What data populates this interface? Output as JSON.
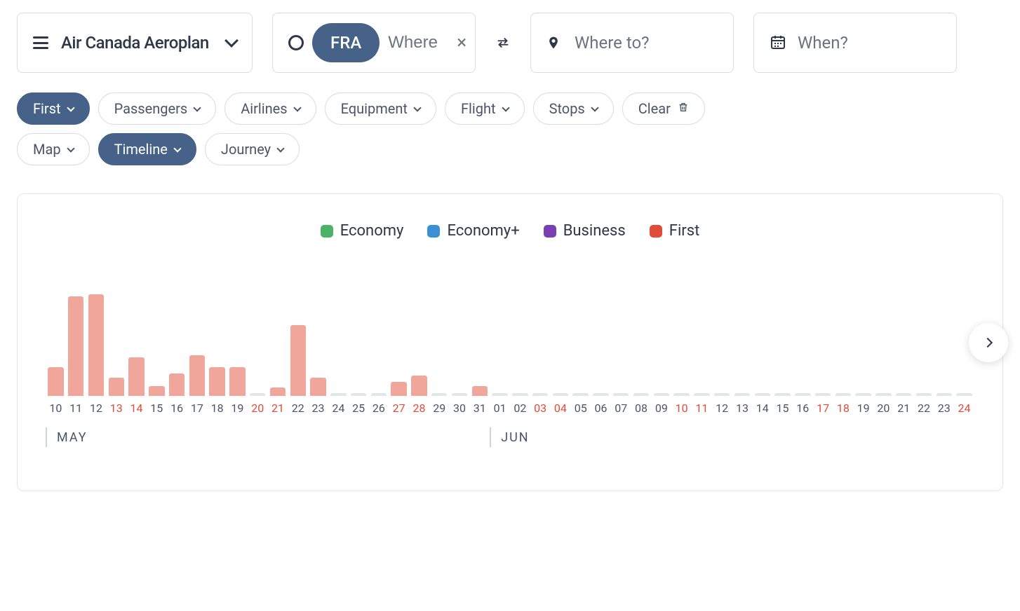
{
  "search": {
    "program_label": "Air Canada Aeroplan",
    "origin_chip": "FRA",
    "origin_placeholder": "Where",
    "dest_placeholder": "Where to?",
    "date_placeholder": "When?"
  },
  "filters_row1": [
    {
      "label": "First",
      "active": true
    },
    {
      "label": "Passengers",
      "active": false
    },
    {
      "label": "Airlines",
      "active": false
    },
    {
      "label": "Equipment",
      "active": false
    },
    {
      "label": "Flight",
      "active": false
    },
    {
      "label": "Stops",
      "active": false
    }
  ],
  "clear_label": "Clear",
  "filters_row2": [
    {
      "label": "Map",
      "active": false
    },
    {
      "label": "Timeline",
      "active": true
    },
    {
      "label": "Journey",
      "active": false
    }
  ],
  "legend": [
    {
      "label": "Economy",
      "color": "#4bb268"
    },
    {
      "label": "Economy+",
      "color": "#3b8fd6"
    },
    {
      "label": "Business",
      "color": "#7a3fb3"
    },
    {
      "label": "First",
      "color": "#e04b3a"
    }
  ],
  "chart": {
    "bar_color": "#f1a69c",
    "empty_color": "#e2e6eb",
    "weekday_color": "#4a5568",
    "weekend_color": "#e04b3a",
    "background_color": "#ffffff",
    "max_value": 100,
    "days": [
      {
        "d": "10",
        "v": 28,
        "weekend": false
      },
      {
        "d": "11",
        "v": 98,
        "weekend": false
      },
      {
        "d": "12",
        "v": 100,
        "weekend": false
      },
      {
        "d": "13",
        "v": 18,
        "weekend": true
      },
      {
        "d": "14",
        "v": 38,
        "weekend": true
      },
      {
        "d": "15",
        "v": 10,
        "weekend": false
      },
      {
        "d": "16",
        "v": 22,
        "weekend": false
      },
      {
        "d": "17",
        "v": 40,
        "weekend": false
      },
      {
        "d": "18",
        "v": 28,
        "weekend": false
      },
      {
        "d": "19",
        "v": 28,
        "weekend": false
      },
      {
        "d": "20",
        "v": 0,
        "weekend": true
      },
      {
        "d": "21",
        "v": 8,
        "weekend": true
      },
      {
        "d": "22",
        "v": 70,
        "weekend": false
      },
      {
        "d": "23",
        "v": 18,
        "weekend": false
      },
      {
        "d": "24",
        "v": 0,
        "weekend": false
      },
      {
        "d": "25",
        "v": 0,
        "weekend": false
      },
      {
        "d": "26",
        "v": 0,
        "weekend": false
      },
      {
        "d": "27",
        "v": 14,
        "weekend": true
      },
      {
        "d": "28",
        "v": 20,
        "weekend": true
      },
      {
        "d": "29",
        "v": 0,
        "weekend": false
      },
      {
        "d": "30",
        "v": 0,
        "weekend": false
      },
      {
        "d": "31",
        "v": 10,
        "weekend": false
      },
      {
        "d": "01",
        "v": 0,
        "weekend": false
      },
      {
        "d": "02",
        "v": 0,
        "weekend": false
      },
      {
        "d": "03",
        "v": 0,
        "weekend": true
      },
      {
        "d": "04",
        "v": 0,
        "weekend": true
      },
      {
        "d": "05",
        "v": 0,
        "weekend": false
      },
      {
        "d": "06",
        "v": 0,
        "weekend": false
      },
      {
        "d": "07",
        "v": 0,
        "weekend": false
      },
      {
        "d": "08",
        "v": 0,
        "weekend": false
      },
      {
        "d": "09",
        "v": 0,
        "weekend": false
      },
      {
        "d": "10",
        "v": 0,
        "weekend": true
      },
      {
        "d": "11",
        "v": 0,
        "weekend": true
      },
      {
        "d": "12",
        "v": 0,
        "weekend": false
      },
      {
        "d": "13",
        "v": 0,
        "weekend": false
      },
      {
        "d": "14",
        "v": 0,
        "weekend": false
      },
      {
        "d": "15",
        "v": 0,
        "weekend": false
      },
      {
        "d": "16",
        "v": 0,
        "weekend": false
      },
      {
        "d": "17",
        "v": 0,
        "weekend": true
      },
      {
        "d": "18",
        "v": 0,
        "weekend": true
      },
      {
        "d": "19",
        "v": 0,
        "weekend": false
      },
      {
        "d": "20",
        "v": 0,
        "weekend": false
      },
      {
        "d": "21",
        "v": 0,
        "weekend": false
      },
      {
        "d": "22",
        "v": 0,
        "weekend": false
      },
      {
        "d": "23",
        "v": 0,
        "weekend": false
      },
      {
        "d": "24",
        "v": 0,
        "weekend": true
      }
    ],
    "months": [
      {
        "label": "MAY",
        "at_index": 0
      },
      {
        "label": "JUN",
        "at_index": 22
      }
    ]
  }
}
